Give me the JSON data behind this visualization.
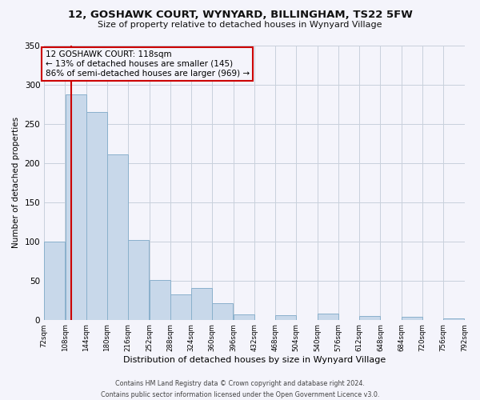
{
  "title": "12, GOSHAWK COURT, WYNYARD, BILLINGHAM, TS22 5FW",
  "subtitle": "Size of property relative to detached houses in Wynyard Village",
  "xlabel": "Distribution of detached houses by size in Wynyard Village",
  "ylabel": "Number of detached properties",
  "bar_color": "#c8d8ea",
  "bar_edge_color": "#8ab0cc",
  "vline_color": "#cc0000",
  "vline_x": 118,
  "bin_edges": [
    72,
    108,
    144,
    180,
    216,
    252,
    288,
    324,
    360,
    396,
    432,
    468,
    504,
    540,
    576,
    612,
    648,
    684,
    720,
    756,
    792
  ],
  "bar_heights": [
    100,
    287,
    265,
    211,
    102,
    51,
    32,
    41,
    21,
    7,
    0,
    6,
    0,
    8,
    0,
    5,
    0,
    4,
    0,
    2
  ],
  "ylim": [
    0,
    350
  ],
  "yticks": [
    0,
    50,
    100,
    150,
    200,
    250,
    300,
    350
  ],
  "xtick_labels": [
    "72sqm",
    "108sqm",
    "144sqm",
    "180sqm",
    "216sqm",
    "252sqm",
    "288sqm",
    "324sqm",
    "360sqm",
    "396sqm",
    "432sqm",
    "468sqm",
    "504sqm",
    "540sqm",
    "576sqm",
    "612sqm",
    "648sqm",
    "684sqm",
    "720sqm",
    "756sqm",
    "792sqm"
  ],
  "annotation_title": "12 GOSHAWK COURT: 118sqm",
  "annotation_line1": "← 13% of detached houses are smaller (145)",
  "annotation_line2": "86% of semi-detached houses are larger (969) →",
  "annotation_box_color": "#cc0000",
  "footer_line1": "Contains HM Land Registry data © Crown copyright and database right 2024.",
  "footer_line2": "Contains public sector information licensed under the Open Government Licence v3.0.",
  "bg_color": "#f4f4fb",
  "grid_color": "#c8d0dc"
}
